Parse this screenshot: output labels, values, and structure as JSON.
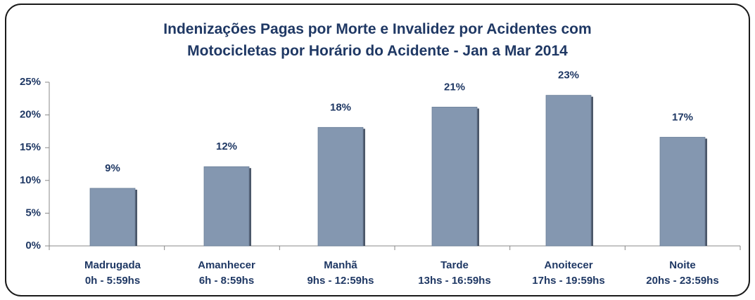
{
  "chart_data": {
    "type": "bar",
    "title": "Indenizações Pagas por Morte e Invalidez por Acidentes com\nMotocicletas por Horário do Acidente - Jan a Mar 2014",
    "categories": [
      "Madrugada\n0h - 5:59hs",
      "Amanhecer\n6h - 8:59hs",
      "Manhã\n9hs - 12:59hs",
      "Tarde\n13hs - 16:59hs",
      "Anoitecer\n17hs - 19:59hs",
      "Noite\n20hs - 23:59hs"
    ],
    "values": [
      8.8,
      12.1,
      18.1,
      21.2,
      23.0,
      16.6
    ],
    "value_labels": [
      "9%",
      "12%",
      "18%",
      "21%",
      "23%",
      "17%"
    ],
    "color": "#8497b0",
    "ylim": [
      0,
      25
    ],
    "yticks": [
      {
        "value": 0,
        "label": "0%"
      },
      {
        "value": 5,
        "label": "5%"
      },
      {
        "value": 10,
        "label": "10%"
      },
      {
        "value": 15,
        "label": "15%"
      },
      {
        "value": 20,
        "label": "20%"
      },
      {
        "value": 25,
        "label": "25%"
      }
    ],
    "grid": false
  }
}
